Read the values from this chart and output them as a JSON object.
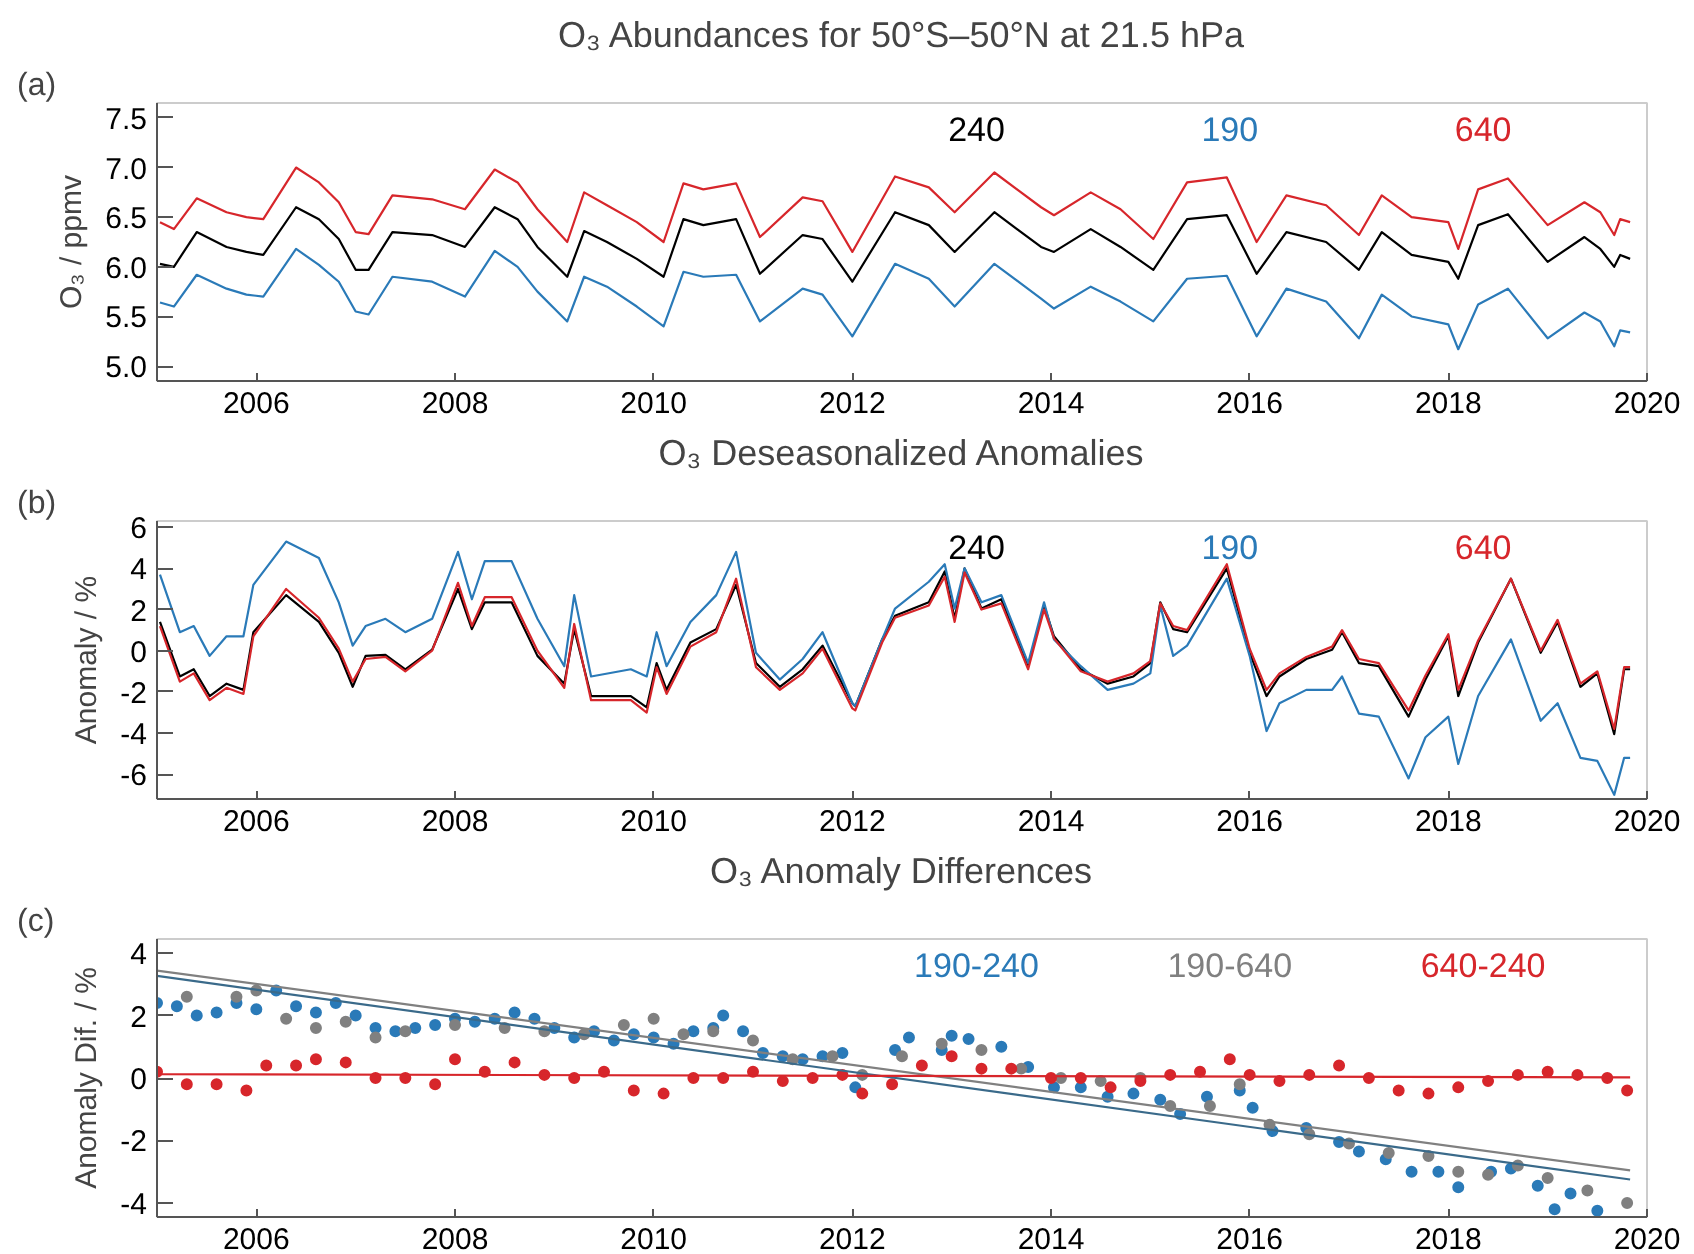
{
  "chart_data": [
    {
      "type": "line",
      "title": "O₃ Abundances for 50°S–50°N at 21.5 hPa",
      "ylabel": "O₃ / ppmv",
      "annotations": [
        "(a)"
      ],
      "xlim": [
        2005,
        2020
      ],
      "xticks": [
        2006,
        2008,
        2010,
        2012,
        2014,
        2016,
        2018,
        2020
      ],
      "ylim": [
        4.85,
        7.65
      ],
      "yticks": [
        {
          "value": 5,
          "label": "5.0"
        },
        5.5,
        {
          "value": 6,
          "label": "6.0"
        },
        6.5,
        {
          "value": 7,
          "label": "7.0"
        },
        7.5
      ],
      "x": [
        2005.03,
        2005.17,
        2005.4,
        2005.7,
        2005.9,
        2006.07,
        2006.4,
        2006.63,
        2006.83,
        2007.0,
        2007.13,
        2007.37,
        2007.77,
        2008.1,
        2008.4,
        2008.63,
        2008.83,
        2009.13,
        2009.3,
        2009.53,
        2009.83,
        2010.1,
        2010.3,
        2010.5,
        2010.83,
        2011.07,
        2011.5,
        2011.7,
        2012.0,
        2012.43,
        2012.77,
        2013.03,
        2013.43,
        2013.9,
        2014.03,
        2014.4,
        2014.7,
        2015.03,
        2015.37,
        2015.77,
        2016.07,
        2016.37,
        2016.77,
        2017.1,
        2017.33,
        2017.63,
        2018.0,
        2018.1,
        2018.3,
        2018.6,
        2019.0,
        2019.37,
        2019.53,
        2019.67,
        2019.73,
        2019.83
      ],
      "series": [
        {
          "name": "240",
          "color": "#000000",
          "values": [
            6.03,
            6.0,
            6.35,
            6.2,
            6.15,
            6.12,
            6.6,
            6.48,
            6.28,
            5.97,
            5.97,
            6.35,
            6.32,
            6.2,
            6.6,
            6.48,
            6.2,
            5.9,
            6.36,
            6.25,
            6.08,
            5.9,
            6.48,
            6.42,
            6.48,
            5.93,
            6.32,
            6.28,
            5.85,
            6.55,
            6.42,
            6.15,
            6.55,
            6.2,
            6.15,
            6.38,
            6.2,
            5.97,
            6.48,
            6.52,
            5.93,
            6.35,
            6.25,
            5.97,
            6.35,
            6.12,
            6.05,
            5.88,
            6.42,
            6.53,
            6.05,
            6.3,
            6.18,
            6.0,
            6.12,
            6.08
          ]
        },
        {
          "name": "190",
          "color": "#2a7ab8",
          "values": [
            5.64,
            5.6,
            5.92,
            5.78,
            5.72,
            5.7,
            6.18,
            6.02,
            5.85,
            5.55,
            5.52,
            5.9,
            5.85,
            5.7,
            6.16,
            6.0,
            5.75,
            5.45,
            5.9,
            5.8,
            5.6,
            5.4,
            5.95,
            5.9,
            5.92,
            5.45,
            5.78,
            5.72,
            5.3,
            6.03,
            5.88,
            5.6,
            6.03,
            5.68,
            5.58,
            5.8,
            5.65,
            5.45,
            5.88,
            5.91,
            5.3,
            5.78,
            5.65,
            5.28,
            5.72,
            5.5,
            5.42,
            5.17,
            5.62,
            5.78,
            5.28,
            5.54,
            5.45,
            5.2,
            5.36,
            5.34
          ]
        },
        {
          "name": "640",
          "color": "#d7262b",
          "values": [
            6.45,
            6.38,
            6.69,
            6.55,
            6.5,
            6.48,
            7.0,
            6.85,
            6.65,
            6.35,
            6.33,
            6.72,
            6.68,
            6.58,
            6.98,
            6.85,
            6.58,
            6.25,
            6.75,
            6.62,
            6.45,
            6.25,
            6.84,
            6.78,
            6.84,
            6.3,
            6.7,
            6.66,
            6.15,
            6.91,
            6.8,
            6.55,
            6.95,
            6.6,
            6.52,
            6.75,
            6.58,
            6.28,
            6.85,
            6.9,
            6.25,
            6.72,
            6.62,
            6.32,
            6.72,
            6.5,
            6.45,
            6.18,
            6.78,
            6.89,
            6.42,
            6.65,
            6.55,
            6.32,
            6.48,
            6.45
          ]
        }
      ]
    },
    {
      "type": "line",
      "title": "O₃ Deseasonalized Anomalies",
      "ylabel": "Anomaly / %",
      "annotations": [
        "(b)"
      ],
      "xlim": [
        2005,
        2020
      ],
      "xticks": [
        2006,
        2008,
        2010,
        2012,
        2014,
        2016,
        2018,
        2020
      ],
      "ylim": [
        -7.2,
        6.3
      ],
      "yticks": [
        -6,
        -4,
        -2,
        0,
        2,
        4,
        6
      ],
      "x": [
        2005.03,
        2005.23,
        2005.37,
        2005.53,
        2005.7,
        2005.87,
        2005.97,
        2006.3,
        2006.63,
        2006.83,
        2006.97,
        2007.1,
        2007.3,
        2007.5,
        2007.77,
        2008.03,
        2008.17,
        2008.3,
        2008.57,
        2008.83,
        2009.1,
        2009.2,
        2009.37,
        2009.77,
        2009.93,
        2010.03,
        2010.13,
        2010.37,
        2010.63,
        2010.83,
        2011.03,
        2011.27,
        2011.5,
        2011.7,
        2012.0,
        2012.03,
        2012.3,
        2012.43,
        2012.77,
        2012.93,
        2013.03,
        2013.13,
        2013.3,
        2013.5,
        2013.77,
        2013.93,
        2014.03,
        2014.3,
        2014.57,
        2014.83,
        2015.0,
        2015.1,
        2015.23,
        2015.37,
        2015.77,
        2016.0,
        2016.17,
        2016.3,
        2016.57,
        2016.83,
        2016.93,
        2017.1,
        2017.3,
        2017.6,
        2017.77,
        2018.0,
        2018.1,
        2018.3,
        2018.63,
        2018.93,
        2019.1,
        2019.33,
        2019.5,
        2019.67,
        2019.77,
        2019.83
      ],
      "series": [
        {
          "name": "240",
          "color": "#000000",
          "values": [
            1.4,
            -1.25,
            -0.9,
            -2.2,
            -1.6,
            -1.9,
            0.9,
            2.7,
            1.4,
            -0.1,
            -1.75,
            -0.25,
            -0.2,
            -0.9,
            0.05,
            3.0,
            1.05,
            2.35,
            2.35,
            -0.25,
            -1.6,
            1.05,
            -2.2,
            -2.2,
            -2.75,
            -0.6,
            -1.9,
            0.4,
            1.05,
            3.2,
            -0.6,
            -1.75,
            -0.9,
            0.25,
            -2.55,
            -2.7,
            0.55,
            1.7,
            2.35,
            3.85,
            1.55,
            4.0,
            2.05,
            2.5,
            -0.75,
            2.2,
            0.7,
            -0.9,
            -1.6,
            -1.25,
            -0.6,
            2.35,
            1.05,
            0.9,
            4.0,
            -0.1,
            -2.2,
            -1.25,
            -0.4,
            0.05,
            0.9,
            -0.6,
            -0.75,
            -3.2,
            -1.4,
            0.7,
            -2.2,
            0.4,
            3.5,
            -0.1,
            1.4,
            -1.75,
            -1.1,
            -4.05,
            -0.9,
            -0.9
          ]
        },
        {
          "name": "190",
          "color": "#2a7ab8",
          "values": [
            3.7,
            0.9,
            1.2,
            -0.25,
            0.7,
            0.7,
            3.2,
            5.3,
            4.5,
            2.35,
            0.25,
            1.2,
            1.55,
            0.9,
            1.55,
            4.8,
            2.5,
            4.35,
            4.35,
            1.55,
            -0.75,
            2.7,
            -1.25,
            -0.9,
            -1.25,
            0.9,
            -0.75,
            1.4,
            2.7,
            4.8,
            -0.1,
            -1.4,
            -0.4,
            0.9,
            -2.55,
            -2.7,
            0.55,
            2.05,
            3.35,
            4.2,
            2.05,
            4.0,
            2.35,
            2.7,
            -0.6,
            2.35,
            0.55,
            -0.75,
            -1.9,
            -1.6,
            -1.1,
            2.2,
            -0.25,
            0.25,
            3.5,
            -0.25,
            -3.9,
            -2.55,
            -1.9,
            -1.9,
            -1.25,
            -3.05,
            -3.2,
            -6.2,
            -4.2,
            -3.2,
            -5.5,
            -2.2,
            0.55,
            -3.4,
            -2.55,
            -5.2,
            -5.35,
            -7.0,
            -5.2,
            -5.2
          ]
        },
        {
          "name": "640",
          "color": "#d7262b",
          "values": [
            1.2,
            -1.5,
            -1.1,
            -2.4,
            -1.8,
            -2.1,
            0.7,
            3.0,
            1.6,
            0.1,
            -1.5,
            -0.4,
            -0.3,
            -1.0,
            0.0,
            3.3,
            1.2,
            2.6,
            2.6,
            0.0,
            -1.8,
            1.3,
            -2.4,
            -2.4,
            -3.0,
            -0.8,
            -2.1,
            0.2,
            0.9,
            3.5,
            -0.8,
            -1.9,
            -1.1,
            0.1,
            -2.8,
            -2.9,
            0.4,
            1.6,
            2.2,
            3.6,
            1.4,
            3.8,
            2.0,
            2.3,
            -0.9,
            2.0,
            0.6,
            -1.0,
            -1.5,
            -1.1,
            -0.5,
            2.3,
            1.2,
            1.0,
            4.2,
            0.1,
            -1.9,
            -1.1,
            -0.3,
            0.2,
            1.0,
            -0.4,
            -0.6,
            -2.9,
            -1.2,
            0.8,
            -1.9,
            0.5,
            3.5,
            0.0,
            1.5,
            -1.6,
            -1.0,
            -3.8,
            -0.8,
            -0.8
          ]
        }
      ]
    },
    {
      "type": "scatter",
      "title": "O₃ Anomaly Differences",
      "ylabel": "Anomaly Dif. / %",
      "annotations": [
        "(c)"
      ],
      "xlim": [
        2005,
        2020
      ],
      "xticks": [
        2006,
        2008,
        2010,
        2012,
        2014,
        2016,
        2018,
        2020
      ],
      "ylim": [
        -4.45,
        4.45
      ],
      "yticks": [
        -4,
        -2,
        0,
        2,
        4
      ],
      "series": [
        {
          "name": "190-240",
          "color": "#2a7ab8",
          "marker": "circle",
          "x": [
            2005.0,
            2005.2,
            2005.4,
            2005.6,
            2005.8,
            2006.0,
            2006.2,
            2006.4,
            2006.6,
            2006.8,
            2007.0,
            2007.2,
            2007.4,
            2007.6,
            2007.8,
            2008.0,
            2008.2,
            2008.4,
            2008.6,
            2008.8,
            2009.0,
            2009.2,
            2009.4,
            2009.6,
            2009.8,
            2010.0,
            2010.2,
            2010.4,
            2010.6,
            2010.7,
            2010.9,
            2011.1,
            2011.3,
            2011.5,
            2011.7,
            2011.9,
            2012.03,
            2012.43,
            2012.57,
            2012.9,
            2013.0,
            2013.17,
            2013.5,
            2013.77,
            2014.03,
            2014.3,
            2014.57,
            2014.83,
            2015.1,
            2015.3,
            2015.57,
            2015.9,
            2016.03,
            2016.23,
            2016.57,
            2016.9,
            2017.1,
            2017.37,
            2017.63,
            2017.9,
            2018.1,
            2018.43,
            2018.63,
            2018.9,
            2019.07,
            2019.23,
            2019.5
          ],
          "values": [
            2.4,
            2.3,
            2.0,
            2.1,
            2.4,
            2.2,
            2.8,
            2.3,
            2.1,
            2.4,
            2.0,
            1.6,
            1.5,
            1.6,
            1.7,
            1.9,
            1.8,
            1.9,
            2.1,
            1.9,
            1.6,
            1.3,
            1.5,
            1.2,
            1.4,
            1.3,
            1.1,
            1.5,
            1.6,
            2.0,
            1.5,
            0.8,
            0.7,
            0.6,
            0.7,
            0.8,
            -0.3,
            0.9,
            1.3,
            0.9,
            1.35,
            1.25,
            1.0,
            0.35,
            -0.3,
            -0.3,
            -0.6,
            -0.5,
            -0.7,
            -1.15,
            -0.6,
            -0.4,
            -0.95,
            -1.7,
            -1.6,
            -2.05,
            -2.35,
            -2.6,
            -3.0,
            -3.0,
            -3.5,
            -3.0,
            -2.9,
            -3.45,
            -4.2,
            -3.7,
            -4.25
          ]
        },
        {
          "name": "190-640",
          "color": "#808080",
          "marker": "circle",
          "x": [
            2005.3,
            2005.8,
            2006.0,
            2006.3,
            2006.6,
            2006.9,
            2007.2,
            2007.5,
            2008.0,
            2008.5,
            2008.9,
            2009.3,
            2009.7,
            2010.0,
            2010.3,
            2010.6,
            2011.0,
            2011.4,
            2011.8,
            2012.1,
            2012.5,
            2012.9,
            2013.3,
            2013.7,
            2014.1,
            2014.5,
            2014.9,
            2015.2,
            2015.6,
            2015.9,
            2016.2,
            2016.6,
            2017.0,
            2017.4,
            2017.8,
            2018.1,
            2018.4,
            2018.7,
            2019.0,
            2019.4,
            2019.8
          ],
          "values": [
            2.6,
            2.6,
            2.8,
            1.9,
            1.6,
            1.8,
            1.3,
            1.5,
            1.7,
            1.6,
            1.5,
            1.4,
            1.7,
            1.9,
            1.4,
            1.5,
            1.2,
            0.6,
            0.7,
            0.1,
            0.7,
            1.1,
            0.9,
            0.3,
            0.0,
            -0.1,
            0.0,
            -0.9,
            -0.9,
            -0.2,
            -1.5,
            -1.8,
            -2.1,
            -2.4,
            -2.5,
            -3.0,
            -3.1,
            -2.8,
            -3.2,
            -3.6,
            -4.0
          ]
        },
        {
          "name": "640-240",
          "color": "#d7262b",
          "marker": "circle",
          "x": [
            2005.0,
            2005.3,
            2005.6,
            2005.9,
            2006.1,
            2006.4,
            2006.6,
            2006.9,
            2007.2,
            2007.5,
            2007.8,
            2008.0,
            2008.3,
            2008.6,
            2008.9,
            2009.2,
            2009.5,
            2009.8,
            2010.1,
            2010.4,
            2010.7,
            2011.0,
            2011.3,
            2011.6,
            2011.9,
            2012.1,
            2012.4,
            2012.7,
            2013.0,
            2013.3,
            2013.6,
            2014.0,
            2014.3,
            2014.6,
            2014.9,
            2015.2,
            2015.5,
            2015.8,
            2016.0,
            2016.3,
            2016.6,
            2016.9,
            2017.2,
            2017.5,
            2017.8,
            2018.1,
            2018.4,
            2018.7,
            2019.0,
            2019.3,
            2019.6,
            2019.8
          ],
          "values": [
            0.2,
            -0.2,
            -0.2,
            -0.4,
            0.4,
            0.4,
            0.6,
            0.5,
            0.0,
            0.0,
            -0.2,
            0.6,
            0.2,
            0.5,
            0.1,
            0.0,
            0.2,
            -0.4,
            -0.5,
            0.0,
            0.0,
            0.2,
            -0.1,
            0.0,
            0.1,
            -0.5,
            -0.2,
            0.4,
            0.7,
            0.3,
            0.3,
            0.0,
            0.0,
            -0.3,
            -0.1,
            0.1,
            0.2,
            0.6,
            0.1,
            -0.1,
            0.1,
            0.4,
            0.0,
            -0.4,
            -0.5,
            -0.3,
            -0.1,
            0.1,
            0.2,
            0.1,
            0.0,
            -0.4
          ]
        },
        {
          "type": "line",
          "color": "#3a6a8a",
          "x": [
            2005.0,
            2019.83
          ],
          "values": [
            3.27,
            -3.25
          ]
        },
        {
          "type": "line",
          "color": "#808080",
          "x": [
            2005.0,
            2019.83
          ],
          "values": [
            3.44,
            -2.96
          ]
        },
        {
          "type": "line",
          "color": "#d7262b",
          "x": [
            2005.0,
            2019.83
          ],
          "values": [
            0.12,
            0.02
          ]
        }
      ]
    }
  ]
}
